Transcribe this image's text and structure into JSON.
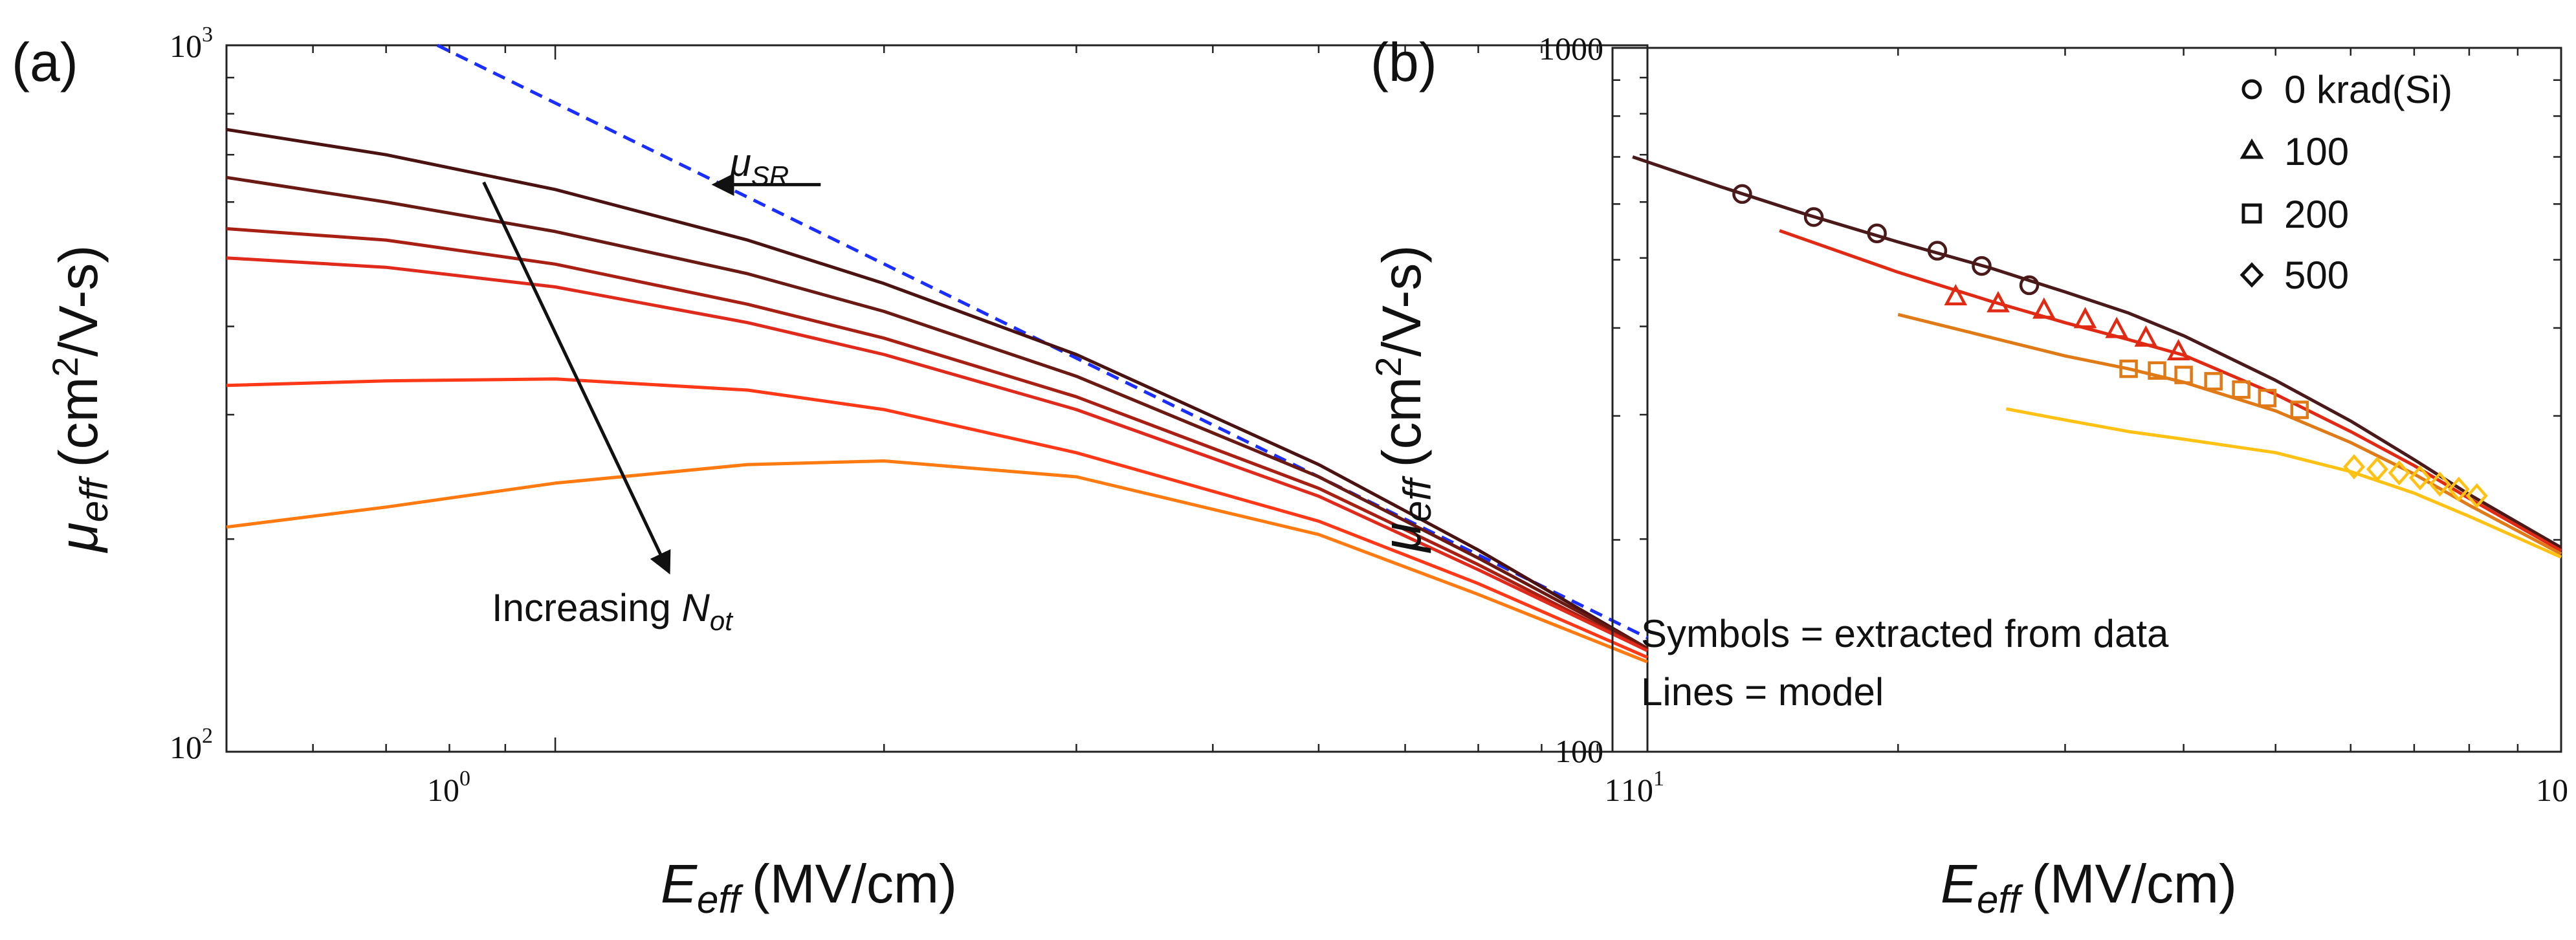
{
  "chart_data": [
    {
      "type": "line",
      "panel": "(a)",
      "x_scale": "log",
      "y_scale": "log",
      "xlim": [
        0.5,
        10
      ],
      "ylim": [
        100,
        1000
      ],
      "xlabel_main": "E",
      "xlabel_sub": "eff",
      "xlabel_unit": "(MV/cm)",
      "ylabel_main": "μ",
      "ylabel_sub": "eff",
      "ylabel_unit_pre": "(cm",
      "ylabel_unit_sup": "2",
      "ylabel_unit_post": "/V-s)",
      "x_ticks": [
        {
          "value": 1,
          "base": "10",
          "exp": "0"
        },
        {
          "value": 10,
          "base": "10",
          "exp": "1"
        }
      ],
      "y_ticks": [
        {
          "value": 100,
          "base": "10",
          "exp": "2"
        },
        {
          "value": 1000,
          "base": "10",
          "exp": "3"
        }
      ],
      "reference_line": {
        "name": "mu_SR",
        "style": "dashed",
        "color": "#1a2eff",
        "x": [
          0.78,
          10
        ],
        "y": [
          1000,
          145
        ]
      },
      "series": [
        {
          "color": "#4a1210",
          "x": [
            0.5,
            0.7,
            1.0,
            1.5,
            2.0,
            3.0,
            5.0,
            7.0,
            10.0
          ],
          "y": [
            760,
            700,
            625,
            530,
            460,
            365,
            255,
            193,
            140
          ]
        },
        {
          "color": "#6a1a12",
          "x": [
            0.5,
            0.7,
            1.0,
            1.5,
            2.0,
            3.0,
            5.0,
            7.0,
            10.0
          ],
          "y": [
            650,
            600,
            545,
            475,
            420,
            340,
            245,
            188,
            140
          ]
        },
        {
          "color": "#a82014",
          "x": [
            0.5,
            0.7,
            1.0,
            1.5,
            2.0,
            3.0,
            5.0,
            7.0,
            10.0
          ],
          "y": [
            550,
            530,
            490,
            430,
            385,
            318,
            236,
            184,
            139
          ]
        },
        {
          "color": "#e02a1c",
          "x": [
            0.5,
            0.7,
            1.0,
            1.5,
            2.0,
            3.0,
            5.0,
            7.0,
            10.0
          ],
          "y": [
            500,
            485,
            455,
            405,
            365,
            305,
            230,
            181,
            139
          ]
        },
        {
          "color": "#ff3818",
          "x": [
            0.5,
            0.7,
            1.0,
            1.5,
            2.0,
            3.0,
            5.0,
            7.0,
            10.0
          ],
          "y": [
            330,
            335,
            337,
            325,
            305,
            265,
            212,
            173,
            136
          ]
        },
        {
          "color": "#ff7a10",
          "x": [
            0.5,
            0.7,
            1.0,
            1.5,
            2.0,
            3.0,
            5.0,
            7.0,
            10.0
          ],
          "y": [
            208,
            222,
            240,
            255,
            258,
            245,
            203,
            167,
            134
          ]
        }
      ],
      "annotations": {
        "mu_label_main": "μ",
        "mu_label_sub": "SR",
        "increasing_text": "Increasing ",
        "increasing_var": "N",
        "increasing_sub": "ot"
      },
      "arrows": [
        {
          "name": "mu-sr-arrow",
          "from": {
            "x": 1.75,
            "y": 635
          },
          "to": {
            "x": 1.4,
            "y": 635
          }
        },
        {
          "name": "increasing-arrow",
          "from": {
            "x": 0.86,
            "y": 640
          },
          "to": {
            "x": 1.27,
            "y": 180
          }
        }
      ]
    },
    {
      "type": "scatter",
      "panel": "(b)",
      "x_scale": "log",
      "y_scale": "log",
      "xlim": [
        1,
        10
      ],
      "ylim": [
        100,
        1000
      ],
      "xlabel_main": "E",
      "xlabel_sub": "eff",
      "xlabel_unit": "(MV/cm)",
      "ylabel_main": "μ",
      "ylabel_sub": "eff",
      "ylabel_unit_pre": "(cm",
      "ylabel_unit_sup": "2",
      "ylabel_unit_post": "/V-s)",
      "x_ticks": [
        {
          "value": 1,
          "label": "1"
        },
        {
          "value": 10,
          "label": "10"
        }
      ],
      "y_ticks": [
        {
          "value": 100,
          "label": "100"
        },
        {
          "value": 1000,
          "label": "1000"
        }
      ],
      "legend": [
        {
          "marker": "circle",
          "label": "0 krad(Si)"
        },
        {
          "marker": "triangle",
          "label": "100"
        },
        {
          "marker": "square",
          "label": "200"
        },
        {
          "marker": "diamond",
          "label": "500"
        }
      ],
      "notes": [
        "Symbols = extracted from data",
        "Lines = model"
      ],
      "series": [
        {
          "name": "0 krad(Si)",
          "color": "#4a1a1a",
          "marker": "circle",
          "line_x": [
            1.05,
            1.3,
            1.6,
            2.0,
            2.5,
            3.0,
            3.5,
            4.0,
            5.0,
            6.0,
            7.0,
            8.0,
            10.0
          ],
          "line_y": [
            700,
            635,
            580,
            530,
            487,
            450,
            420,
            390,
            337,
            295,
            260,
            232,
            195
          ],
          "x": [
            1.37,
            1.63,
            1.9,
            2.2,
            2.45,
            2.75
          ],
          "y": [
            620,
            575,
            545,
            515,
            490,
            460
          ]
        },
        {
          "name": "100",
          "color": "#e02a14",
          "marker": "triangle",
          "line_x": [
            1.5,
            2.0,
            2.5,
            3.0,
            3.5,
            4.0,
            5.0,
            6.0,
            7.0,
            8.0,
            10.0
          ],
          "line_y": [
            550,
            480,
            437,
            407,
            385,
            366,
            322,
            285,
            255,
            229,
            193
          ],
          "x": [
            2.3,
            2.55,
            2.85,
            3.15,
            3.4,
            3.65,
            3.95
          ],
          "y": [
            443,
            433,
            424,
            411,
            398,
            387,
            370
          ]
        },
        {
          "name": "200",
          "color": "#e07a16",
          "marker": "square",
          "line_x": [
            2.0,
            2.5,
            3.0,
            3.5,
            4.0,
            5.0,
            6.0,
            7.0,
            8.0,
            10.0
          ],
          "line_y": [
            418,
            388,
            365,
            350,
            335,
            305,
            275,
            248,
            224,
            191
          ],
          "x": [
            3.5,
            3.75,
            4.0,
            4.3,
            4.6,
            4.9,
            5.3
          ],
          "y": [
            350,
            348,
            343,
            336,
            327,
            318,
            306
          ]
        },
        {
          "name": "500",
          "color": "#ffc214",
          "marker": "diamond",
          "line_x": [
            2.6,
            3.0,
            3.5,
            4.0,
            5.0,
            6.0,
            7.0,
            8.0,
            10.0
          ],
          "line_y": [
            307,
            296,
            285,
            278,
            266,
            250,
            233,
            216,
            189
          ],
          "x": [
            6.05,
            6.4,
            6.75,
            7.1,
            7.45,
            7.8,
            8.15
          ],
          "y": [
            254,
            252,
            249,
            245,
            240,
            236,
            231
          ]
        }
      ]
    }
  ]
}
